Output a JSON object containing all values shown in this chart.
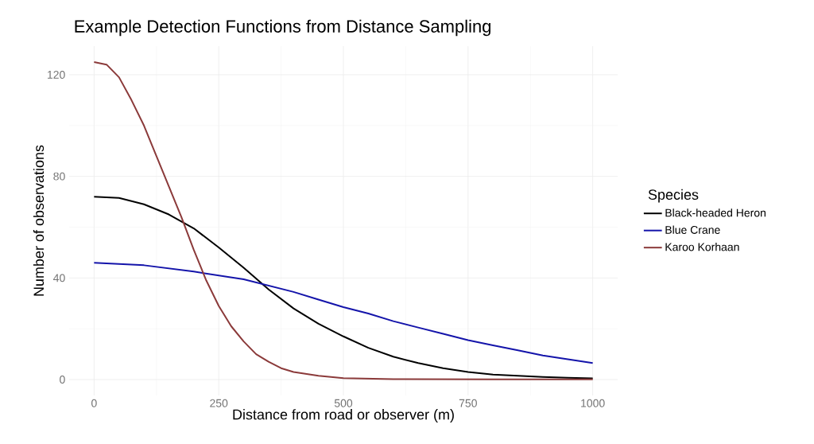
{
  "chart_data": {
    "type": "line",
    "title": "Example Detection Functions from Distance Sampling",
    "xlabel": "Distance from road or observer (m)",
    "ylabel": "Number of observations",
    "legend_title": "Species",
    "xlim": [
      -50,
      1050
    ],
    "ylim": [
      -6.25,
      131.25
    ],
    "xticks": [
      0,
      250,
      500,
      750,
      1000
    ],
    "yticks": [
      0,
      40,
      80,
      120
    ],
    "grid": true,
    "legend": "right",
    "marker": "none",
    "line_style": "solid",
    "series": [
      {
        "name": "Black-headed Heron",
        "color": "#000000",
        "x": [
          0,
          50,
          100,
          150,
          200,
          250,
          300,
          350,
          400,
          450,
          500,
          550,
          600,
          650,
          700,
          750,
          800,
          850,
          900,
          950,
          1000
        ],
        "values": [
          72,
          71.5,
          69,
          65,
          59.5,
          52,
          44,
          35.5,
          28,
          22,
          17,
          12.5,
          9,
          6.5,
          4.5,
          3,
          2,
          1.5,
          1,
          0.7,
          0.5
        ]
      },
      {
        "name": "Blue Crane",
        "color": "#1414aa",
        "x": [
          0,
          100,
          200,
          300,
          350,
          400,
          450,
          500,
          550,
          600,
          650,
          700,
          750,
          800,
          850,
          900,
          950,
          1000
        ],
        "values": [
          46,
          45,
          42.5,
          39.5,
          37,
          34.5,
          31.5,
          28.5,
          26,
          23,
          20.5,
          18,
          15.5,
          13.5,
          11.5,
          9.5,
          8,
          6.5
        ]
      },
      {
        "name": "Karoo Korhaan",
        "color": "#8b3a3a",
        "x": [
          0,
          25,
          50,
          75,
          100,
          125,
          150,
          175,
          200,
          225,
          250,
          275,
          300,
          325,
          350,
          375,
          400,
          450,
          500,
          600,
          800,
          1000
        ],
        "values": [
          125,
          124,
          119,
          110,
          100,
          88,
          76,
          64,
          51,
          39,
          29,
          21,
          15,
          10,
          7,
          4.5,
          3,
          1.5,
          0.6,
          0.2,
          0.1,
          0.1
        ]
      }
    ]
  }
}
